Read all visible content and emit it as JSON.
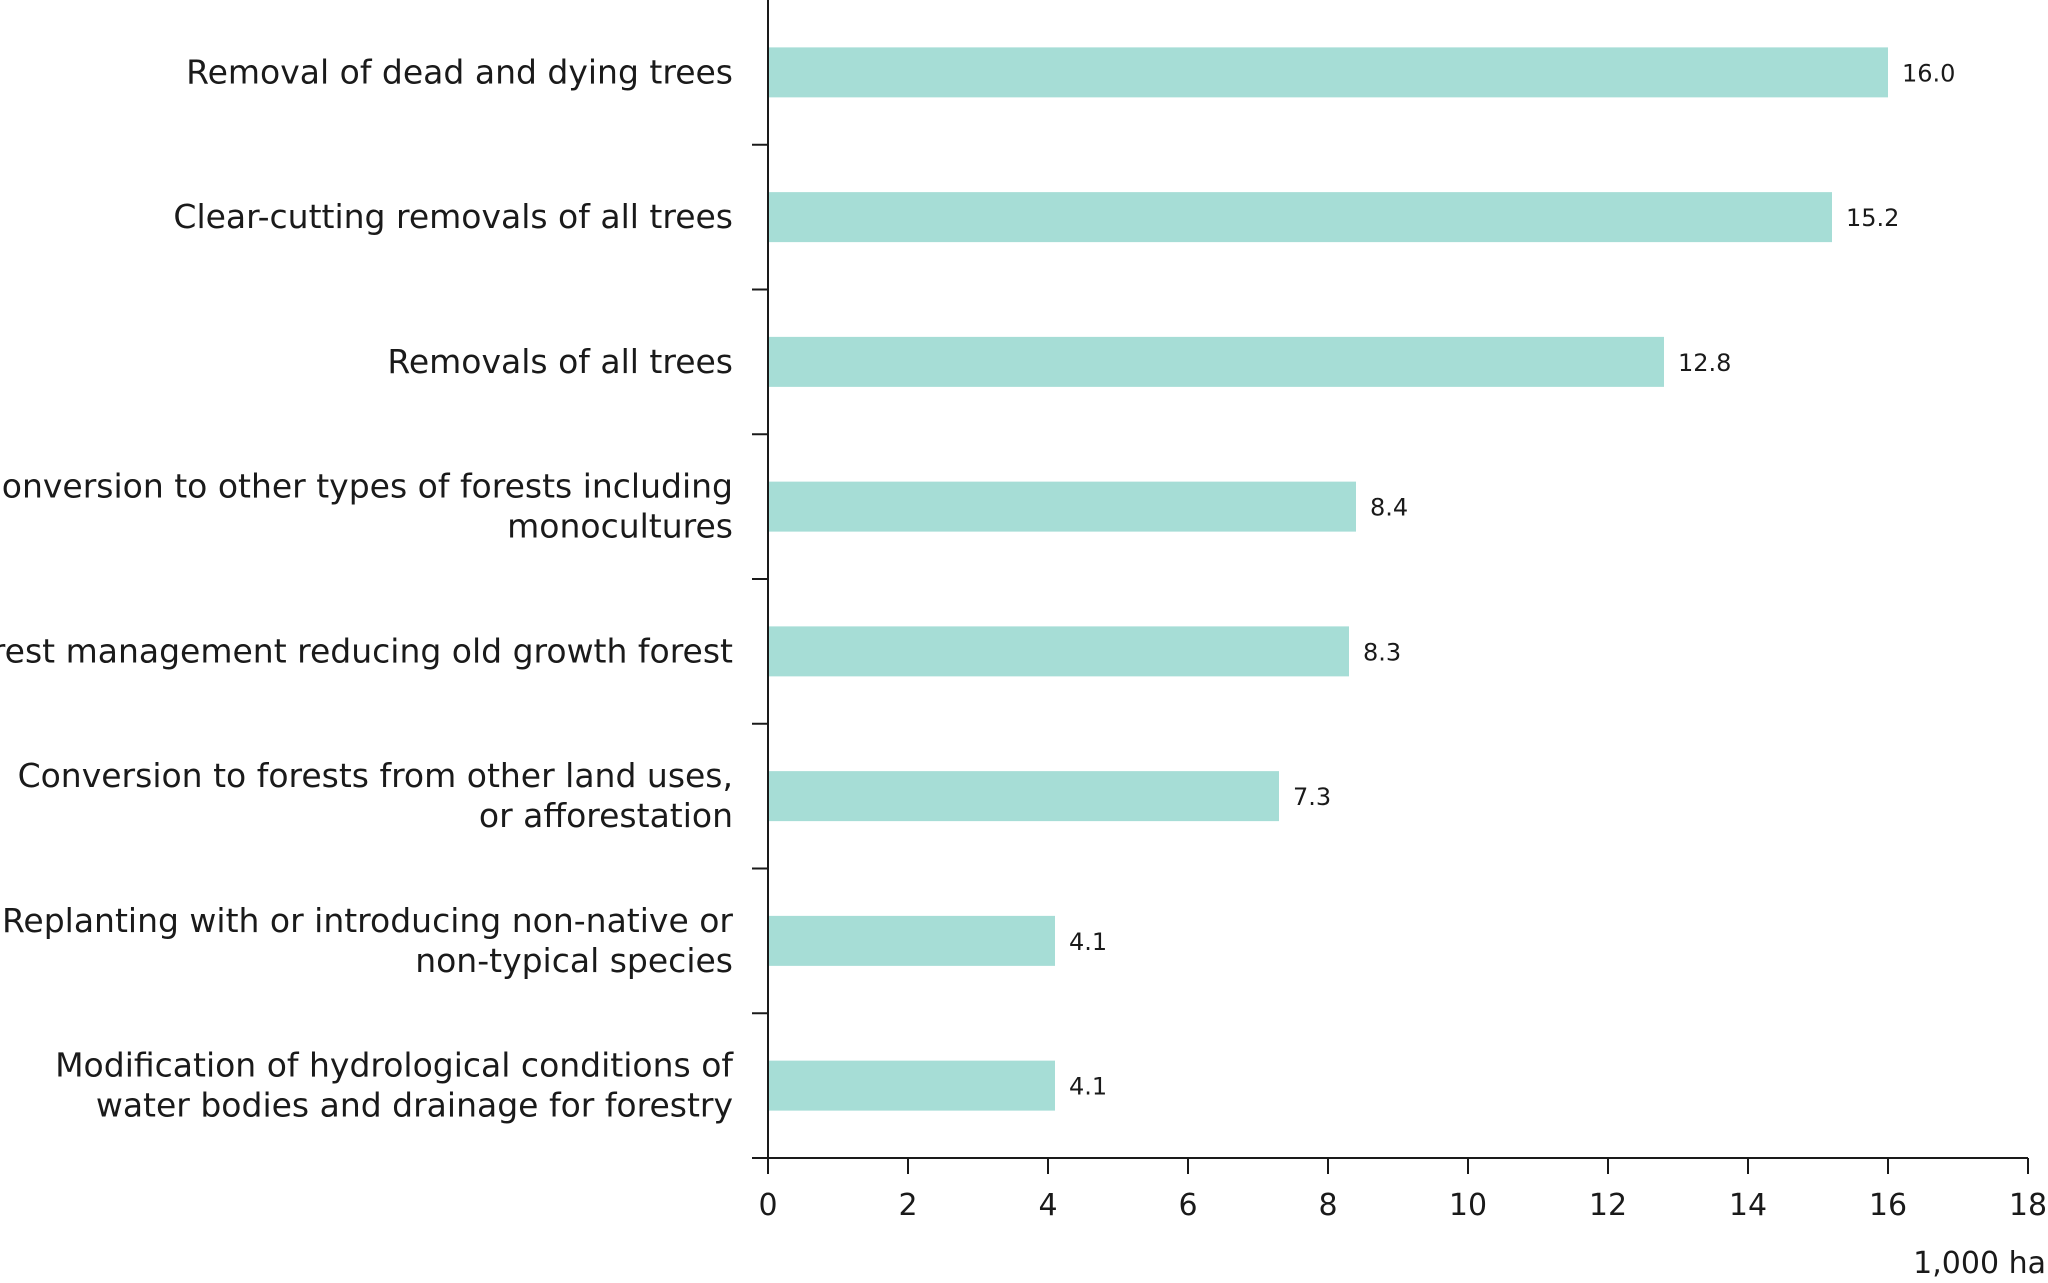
{
  "chart_data": {
    "type": "bar",
    "orientation": "horizontal",
    "categories": [
      [
        "Removal of dead and dying trees"
      ],
      [
        "Clear-cutting removals of all trees"
      ],
      [
        "Removals of all trees"
      ],
      [
        "Conversion to other types of forests including",
        "monocultures"
      ],
      [
        "Forest management reducing old growth forest"
      ],
      [
        "Conversion to forests from other land uses,",
        "or afforestation"
      ],
      [
        "Replanting with or introducing non-native or",
        "non-typical species"
      ],
      [
        "Modification of hydrological conditions of",
        "water bodies and drainage for forestry"
      ]
    ],
    "values": [
      16.0,
      15.2,
      12.8,
      8.4,
      8.3,
      7.3,
      4.1,
      4.1
    ],
    "value_labels": [
      "16.0",
      "15.2",
      "12.8",
      "8.4",
      "8.3",
      "7.3",
      "4.1",
      "4.1"
    ],
    "xlim": [
      0,
      18
    ],
    "xticks": [
      "0",
      "2",
      "4",
      "6",
      "8",
      "10",
      "12",
      "14",
      "16",
      "18"
    ],
    "xlabel": "1,000 ha",
    "ylabel": "",
    "grid": false,
    "colors": {
      "bar": "#a6ddd6",
      "text": "#1a1a1a",
      "axis": "#1a1a1a"
    }
  }
}
